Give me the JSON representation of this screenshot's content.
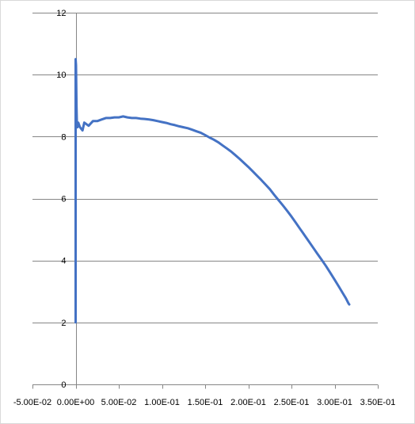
{
  "chart_data": {
    "type": "line",
    "title": "",
    "xlabel": "",
    "ylabel": "",
    "xlim": [
      -0.05,
      0.35
    ],
    "ylim": [
      0,
      12
    ],
    "x_ticks": [
      -0.05,
      0.0,
      0.05,
      0.1,
      0.15,
      0.2,
      0.25,
      0.3,
      0.35
    ],
    "x_tick_labels": [
      "-5.00E-02",
      "0.00E+00",
      "5.00E-02",
      "1.00E-01",
      "1.50E-01",
      "2.00E-01",
      "2.50E-01",
      "3.00E-01",
      "3.50E-01"
    ],
    "y_ticks": [
      0,
      2,
      4,
      6,
      8,
      10,
      12
    ],
    "y_tick_labels": [
      "0",
      "2",
      "4",
      "6",
      "8",
      "10",
      "12"
    ],
    "grid": "horizontal",
    "legend": "none",
    "series_color": "#4472c4",
    "series": [
      {
        "x": [
          0.0,
          0.0,
          0.0,
          0.0005,
          0.001,
          0.0015,
          0.002,
          0.003,
          0.005,
          0.008,
          0.01,
          0.015,
          0.02,
          0.025,
          0.03,
          0.035,
          0.04,
          0.045,
          0.05,
          0.055,
          0.06,
          0.065,
          0.07,
          0.075,
          0.08,
          0.085,
          0.09,
          0.095,
          0.1,
          0.105,
          0.11,
          0.115,
          0.12,
          0.125,
          0.13,
          0.135,
          0.14,
          0.145,
          0.15,
          0.155,
          0.16,
          0.165,
          0.17,
          0.175,
          0.18,
          0.185,
          0.19,
          0.195,
          0.2,
          0.205,
          0.21,
          0.215,
          0.22,
          0.225,
          0.23,
          0.235,
          0.24,
          0.245,
          0.25,
          0.255,
          0.26,
          0.265,
          0.27,
          0.275,
          0.28,
          0.285,
          0.29,
          0.295,
          0.3,
          0.305,
          0.31,
          0.313,
          0.316,
          0.317
        ],
        "y": [
          2.0,
          6.0,
          10.5,
          10.3,
          9.0,
          8.4,
          8.3,
          8.45,
          8.3,
          8.2,
          8.45,
          8.35,
          8.5,
          8.5,
          8.55,
          8.6,
          8.6,
          8.62,
          8.62,
          8.65,
          8.62,
          8.6,
          8.6,
          8.58,
          8.57,
          8.55,
          8.53,
          8.5,
          8.47,
          8.44,
          8.4,
          8.37,
          8.33,
          8.3,
          8.27,
          8.22,
          8.17,
          8.12,
          8.05,
          7.97,
          7.9,
          7.82,
          7.72,
          7.62,
          7.52,
          7.4,
          7.28,
          7.15,
          7.02,
          6.88,
          6.74,
          6.6,
          6.45,
          6.3,
          6.12,
          5.95,
          5.78,
          5.6,
          5.42,
          5.22,
          5.02,
          4.82,
          4.62,
          4.42,
          4.22,
          4.02,
          3.82,
          3.6,
          3.38,
          3.15,
          2.92,
          2.78,
          2.62,
          2.58
        ]
      }
    ]
  }
}
